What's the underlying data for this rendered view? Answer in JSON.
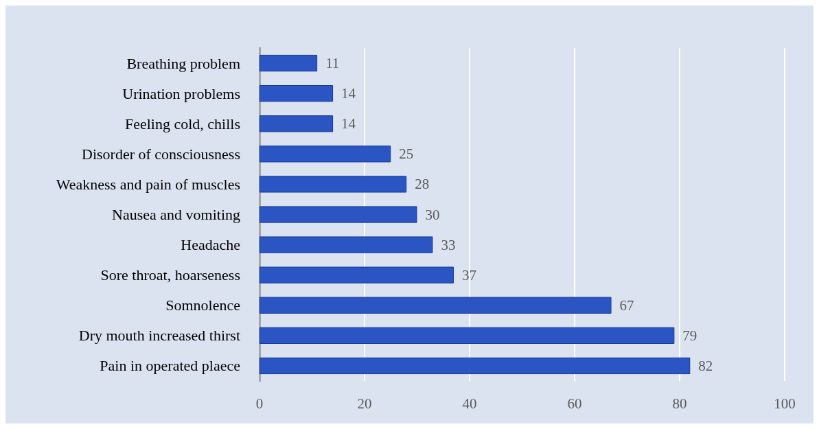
{
  "chart_data": {
    "type": "bar",
    "orientation": "horizontal",
    "categories": [
      "Breathing problem",
      "Urination problems",
      "Feeling cold, chills",
      "Disorder of consciousness",
      "Weakness and pain of muscles",
      "Nausea and vomiting",
      "Headache",
      "Sore throat, hoarseness",
      "Somnolence",
      "Dry mouth increased thirst",
      "Pain in operated plaece"
    ],
    "values": [
      11,
      14,
      14,
      25,
      28,
      30,
      33,
      37,
      67,
      79,
      82
    ],
    "color": "#2a55c2",
    "xlim": [
      0,
      100
    ],
    "xticks": [
      0,
      20,
      40,
      60,
      80,
      100
    ],
    "grid": "x",
    "data_labels": true
  }
}
